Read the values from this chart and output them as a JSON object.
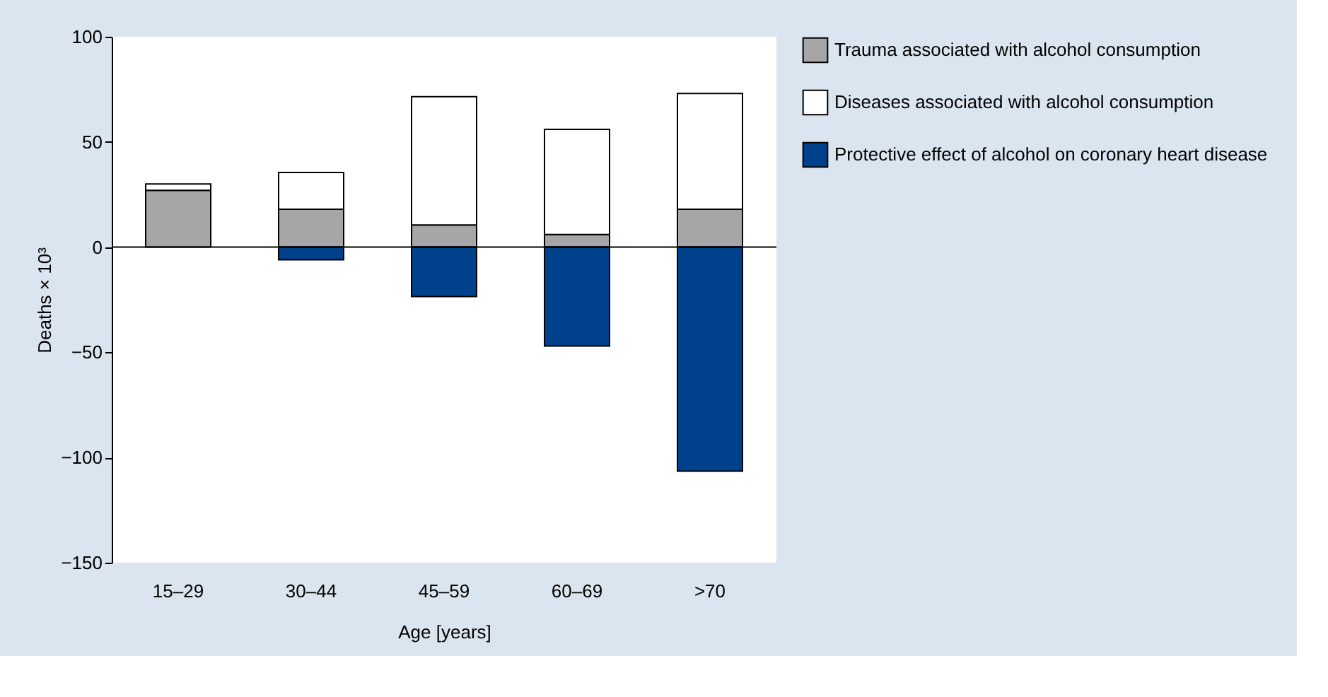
{
  "chart_data": {
    "type": "bar",
    "stacked": true,
    "xlabel": "Age [years]",
    "ylabel": "Deaths × 10³",
    "categories": [
      "15–29",
      "30–44",
      "45–59",
      "60–69",
      ">70"
    ],
    "series": [
      {
        "name": "Trauma associated with alcohol consumption",
        "color": "#a6a6a8",
        "values": [
          27,
          18,
          10.5,
          6,
          18
        ]
      },
      {
        "name": "Diseases associated with alcohol consumption",
        "color": "#ffffff",
        "values": [
          3,
          17.5,
          61,
          50,
          55
        ]
      },
      {
        "name": "Protective effect of alcohol on coronary heart disease",
        "color": "#00418c",
        "values": [
          null,
          -6,
          -23.5,
          -47,
          -106.5
        ]
      }
    ],
    "ylim": [
      -150,
      100
    ],
    "yticks": [
      -150,
      -100,
      -50,
      0,
      50,
      100
    ],
    "ref_lines": [
      {
        "axis": "y",
        "value": 0,
        "color": "#000000"
      }
    ],
    "legend": "right"
  }
}
